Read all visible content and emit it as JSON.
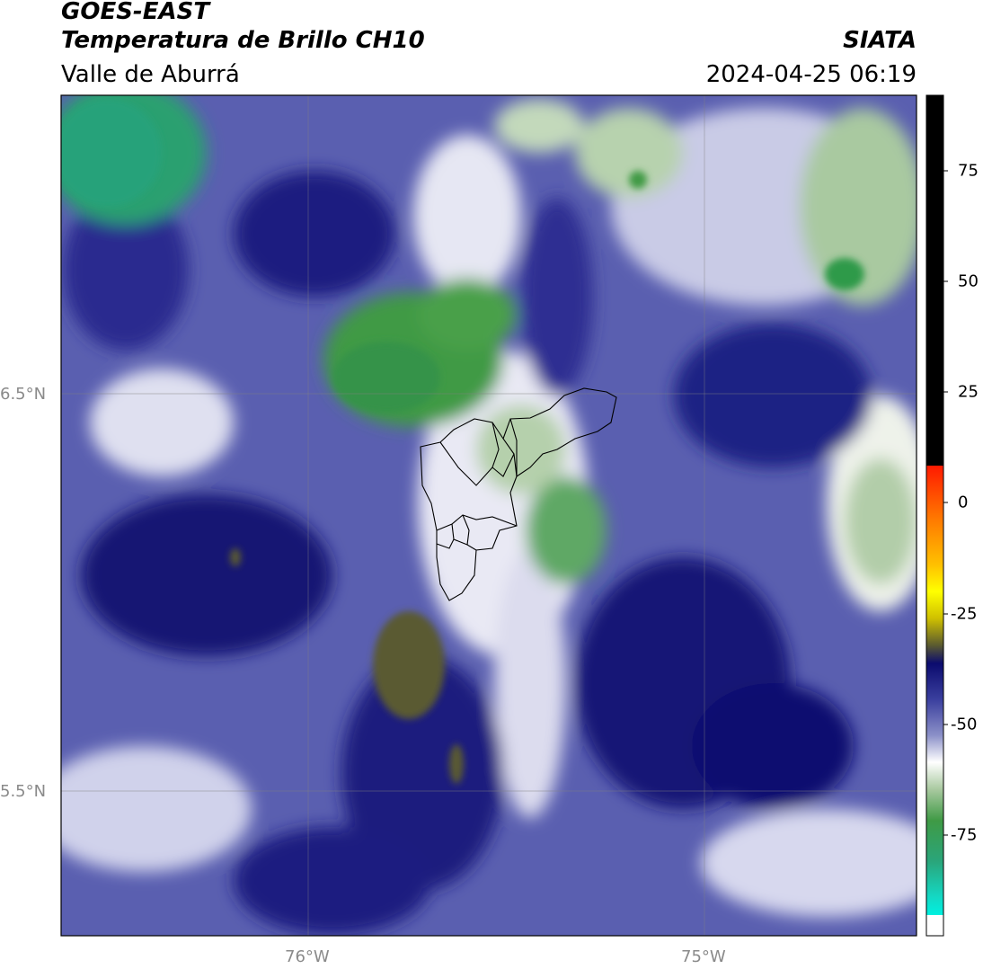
{
  "header": {
    "line1": "GOES-EAST",
    "line2": "Temperatura de Brillo CH10",
    "line3": "Valle de Aburrá",
    "org": "SIATA",
    "datetime": "2024-04-25 06:19"
  },
  "map": {
    "lat_labels": [
      "6.5°N",
      "5.5°N"
    ],
    "lon_labels": [
      "76°W",
      "75°W"
    ],
    "region_outline": "Valle de Aburrá municipalities (black boundaries)",
    "palette": {
      "deep_blue": "#0b0b6e",
      "mid_blue": "#3a3f9e",
      "light_blue": "#8b90c8",
      "white": "#ffffff",
      "light_green": "#a9c9a0",
      "green": "#3f9a45",
      "teal_green": "#2aa57a",
      "olive": "#5a5a30"
    }
  },
  "colorbar": {
    "ticks": [
      "75",
      "50",
      "25",
      "0",
      "-25",
      "-50",
      "-75"
    ],
    "top_color": "#000000",
    "colors": [
      "#000000",
      "#ff0000",
      "#ffb000",
      "#ffff00",
      "#2c2c8a",
      "#ffffff",
      "#3a8a3a",
      "#00e0d0"
    ]
  }
}
